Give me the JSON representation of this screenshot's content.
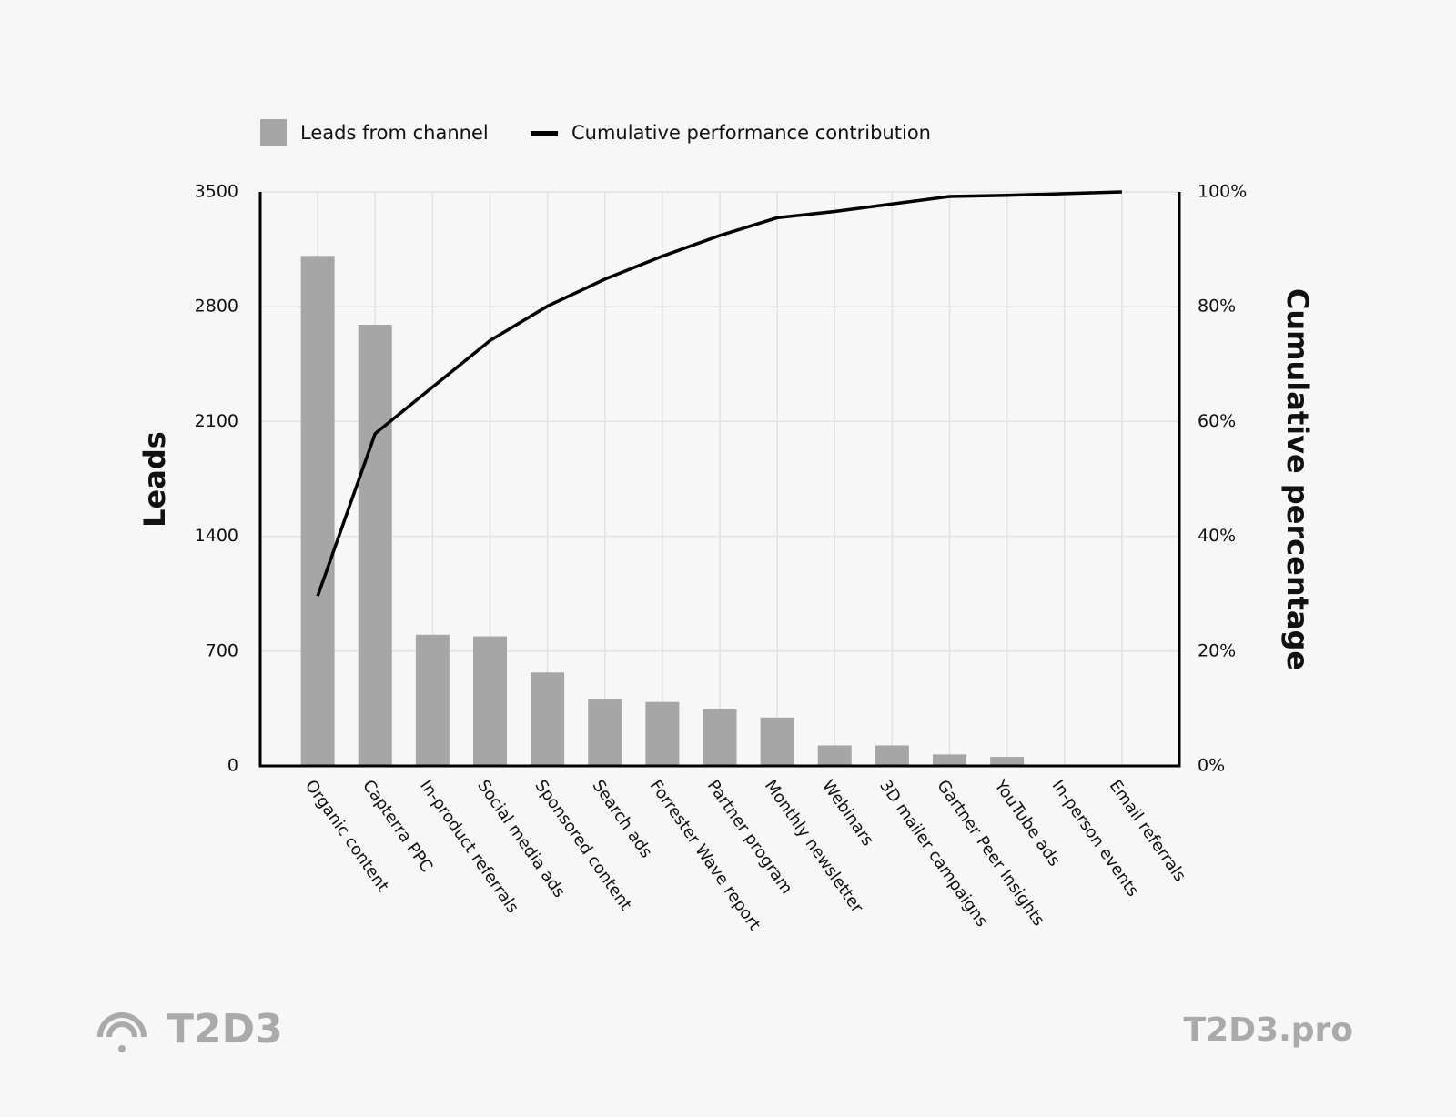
{
  "chart_data": {
    "type": "pareto",
    "categories": [
      "Organic content",
      "Capterra PPC",
      "In-product referrals",
      "Social media ads",
      "Sponsored content",
      "Search ads",
      "Forrester Wave report",
      "Partner program",
      "Monthly newsletter",
      "Webinars",
      "3D mailer campaigns",
      "Gartner Peer Insights",
      "YouTube ads",
      "In-person events",
      "Email referrals"
    ],
    "series": [
      {
        "name": "Leads from channel",
        "color": "#a6a6a6",
        "values": [
          3110,
          2690,
          800,
          790,
          570,
          410,
          390,
          345,
          295,
          125,
          125,
          70,
          55,
          0,
          0
        ]
      },
      {
        "name": "Cumulative performance contribution",
        "color": "#000000",
        "axis": "y2",
        "values": [
          29.6,
          57.9,
          66.0,
          74.1,
          80.1,
          84.8,
          88.8,
          92.4,
          95.5,
          96.6,
          97.9,
          99.2,
          99.4,
          99.7,
          100
        ]
      }
    ],
    "y_label": "Leads",
    "y2_label": "Cumulative percentage",
    "ylim": [
      0,
      3500
    ],
    "yticks": [
      0,
      700,
      1400,
      2100,
      2800,
      3500
    ],
    "y2lim": [
      0,
      100
    ],
    "y2ticks": [
      {
        "value": 0,
        "label": "0%"
      },
      {
        "value": 20,
        "label": "20%"
      },
      {
        "value": 40,
        "label": "40%"
      },
      {
        "value": 60,
        "label": "60%"
      },
      {
        "value": 80,
        "label": "80%"
      },
      {
        "value": 100,
        "label": "100%"
      }
    ],
    "grid": true
  },
  "footer": {
    "brand": "T2D3",
    "url": "T2D3.pro"
  }
}
